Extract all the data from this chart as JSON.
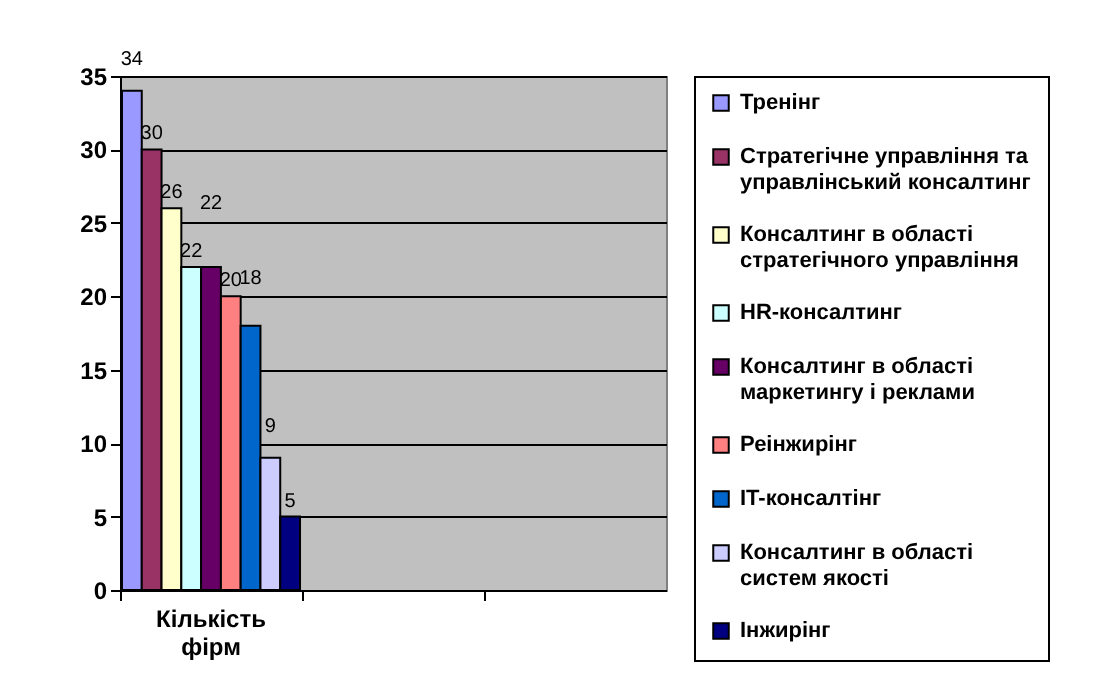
{
  "chart_data": {
    "type": "bar",
    "categories": [
      "Кількість фірм",
      null,
      null
    ],
    "series": [
      {
        "name": "Тренінг",
        "color": "#9999ff",
        "values": [
          34,
          null,
          null
        ]
      },
      {
        "name": "Стратегічне управління та управлінський консалтинг",
        "color": "#993366",
        "values": [
          30,
          null,
          null
        ]
      },
      {
        "name": "Консалтинг в області стратегічного управління",
        "color": "#ffffcc",
        "values": [
          26,
          null,
          null
        ]
      },
      {
        "name": "HR-консалтинг",
        "color": "#ccffff",
        "values": [
          22,
          null,
          null
        ]
      },
      {
        "name": "Консалтинг в області маркетингу і реклами",
        "color": "#660066",
        "values": [
          22,
          null,
          null
        ]
      },
      {
        "name": "Реінжирінг",
        "color": "#ff8080",
        "values": [
          20,
          null,
          null
        ]
      },
      {
        "name": "IT-консалтінг",
        "color": "#0066cc",
        "values": [
          18,
          null,
          null
        ]
      },
      {
        "name": "Консалтинг в області систем якості",
        "color": "#ccccff",
        "values": [
          9,
          null,
          null
        ]
      },
      {
        "name": "Інжирінг",
        "color": "#000080",
        "values": [
          5,
          null,
          null
        ]
      }
    ],
    "ylim": [
      0,
      35
    ],
    "yticks": [
      0,
      5,
      10,
      15,
      20,
      25,
      30,
      35
    ],
    "grid": "y",
    "legend": "right",
    "data_labels": true
  }
}
